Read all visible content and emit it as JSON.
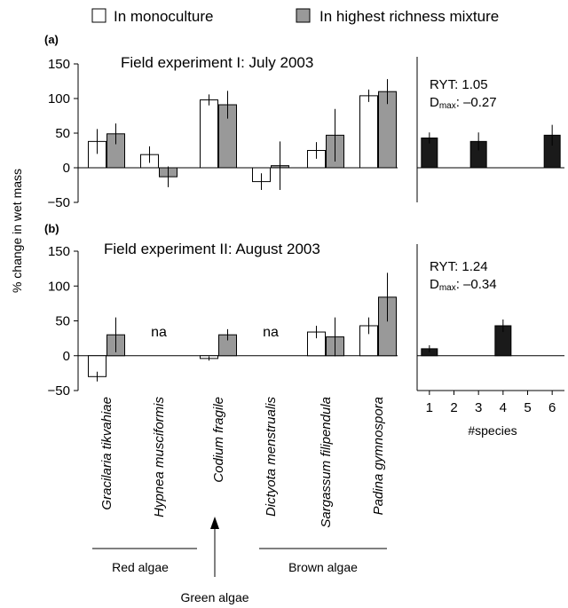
{
  "legend": {
    "items": [
      {
        "label": "In monoculture",
        "color": "#ffffff"
      },
      {
        "label": "In highest richness mixture",
        "color": "#999999"
      }
    ]
  },
  "y_axis_label": "% change in wet mass",
  "species": [
    "Gracilaria tikvahiae",
    "Hypnea musciformis",
    "Codium fragile",
    "Dictyota menstrualis",
    "Sargassum filipendula",
    "Padina gymnospora"
  ],
  "groups": {
    "red": "Red algae",
    "green": "Green algae",
    "brown": "Brown algae"
  },
  "colors": {
    "mono": "#ffffff",
    "mix": "#999999",
    "species_bar": "#1a1a1a",
    "axis": "#000000"
  },
  "chart_data": [
    {
      "type": "bar",
      "panel_label": "(a)",
      "title": "Field experiment I: July 2003",
      "categories": [
        "Gracilaria tikvahiae",
        "Hypnea musciformis",
        "Codium fragile",
        "Dictyota menstrualis",
        "Sargassum filipendula",
        "Padina gymnospora"
      ],
      "series": [
        {
          "name": "In monoculture",
          "values": [
            38,
            19,
            98,
            -20,
            25,
            104
          ],
          "errors": [
            18,
            12,
            8,
            12,
            12,
            9
          ]
        },
        {
          "name": "In highest richness mixture",
          "values": [
            49,
            -13,
            91,
            3,
            47,
            110
          ],
          "errors": [
            15,
            15,
            20,
            35,
            38,
            18
          ]
        }
      ],
      "na_labels": [],
      "ylim": [
        -50,
        150
      ],
      "yticks": [
        -50,
        0,
        50,
        100,
        150
      ],
      "side_panel": {
        "type": "bar",
        "x": [
          1,
          3,
          6
        ],
        "values": [
          43,
          38,
          47
        ],
        "errors": [
          8,
          13,
          15
        ],
        "xlim": [
          0.5,
          6.5
        ],
        "ryt_text": "RYT: 1.05",
        "dmax_label": "D",
        "dmax_sub": "max",
        "dmax_value": ": –0.27"
      }
    },
    {
      "type": "bar",
      "panel_label": "(b)",
      "title": "Field experiment II: August 2003",
      "categories": [
        "Gracilaria tikvahiae",
        "Hypnea musciformis",
        "Codium fragile",
        "Dictyota menstrualis",
        "Sargassum filipendula",
        "Padina gymnospora"
      ],
      "series": [
        {
          "name": "In monoculture",
          "values": [
            -30,
            null,
            -4,
            null,
            34,
            43
          ],
          "errors": [
            7,
            null,
            3,
            null,
            9,
            12
          ]
        },
        {
          "name": "In highest richness mixture",
          "values": [
            30,
            null,
            30,
            null,
            27,
            84
          ],
          "errors": [
            25,
            null,
            8,
            null,
            28,
            35
          ]
        }
      ],
      "na_labels": [
        "na",
        "na"
      ],
      "ylim": [
        -50,
        150
      ],
      "yticks": [
        -50,
        0,
        50,
        100,
        150
      ],
      "side_panel": {
        "type": "bar",
        "x": [
          1,
          4
        ],
        "values": [
          10,
          43
        ],
        "errors": [
          5,
          9
        ],
        "xlim": [
          0.5,
          6.5
        ],
        "ryt_text": "RYT: 1.24",
        "dmax_label": "D",
        "dmax_sub": "max",
        "dmax_value": ": –0.34",
        "xlabel": "#species",
        "xticks": [
          1,
          2,
          3,
          4,
          5,
          6
        ]
      }
    }
  ]
}
